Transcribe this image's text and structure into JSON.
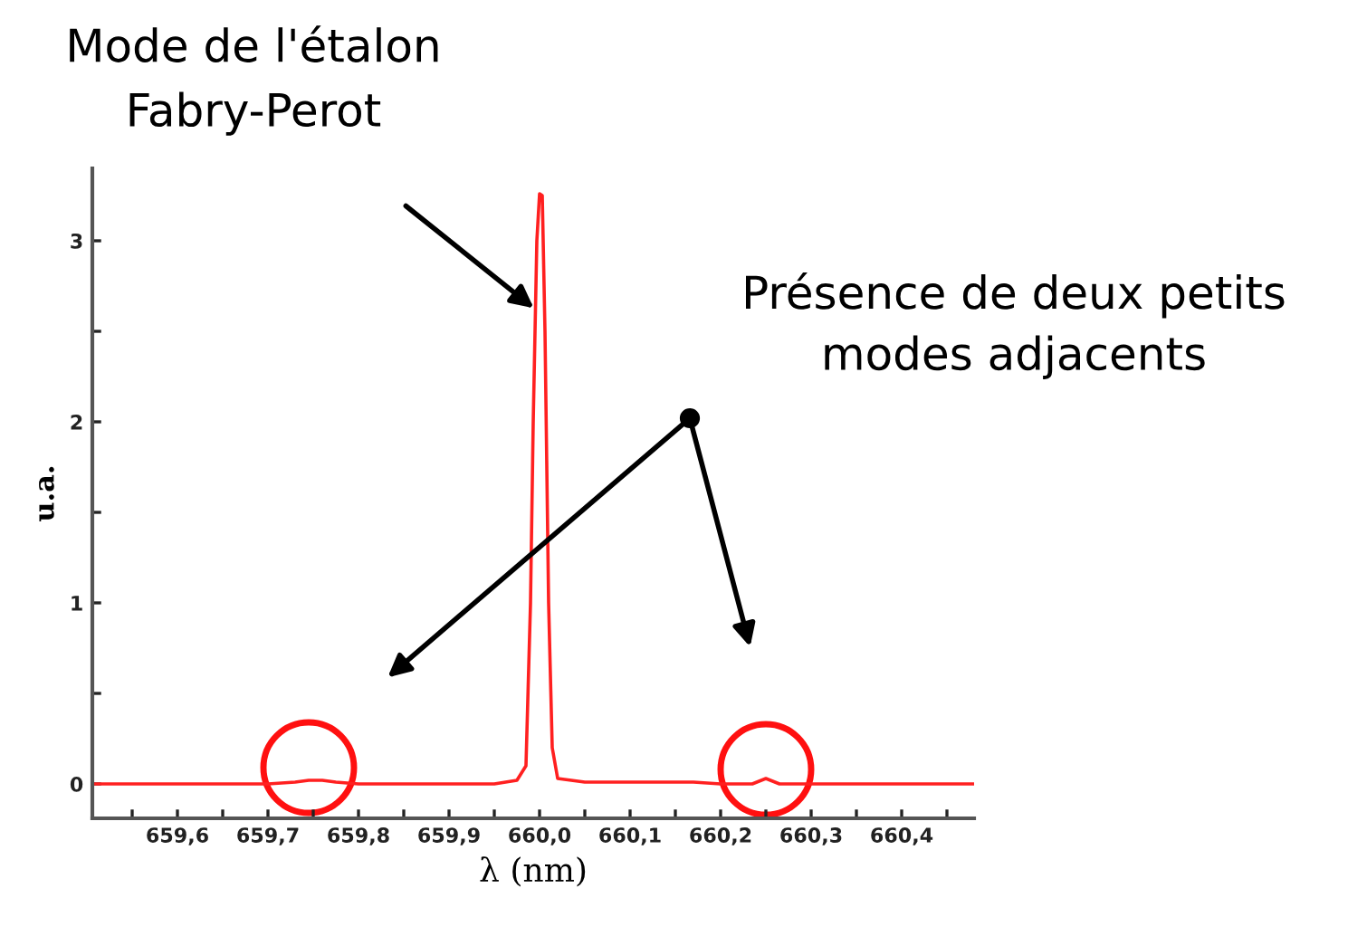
{
  "chart_data": {
    "type": "line",
    "xlabel": "λ (nm)",
    "ylabel": "u.a.",
    "x": [
      659.506,
      659.7,
      659.73,
      659.745,
      659.76,
      659.775,
      659.8,
      659.95,
      659.975,
      659.985,
      659.99,
      659.993,
      659.997,
      660.0,
      660.003,
      660.006,
      660.01,
      660.014,
      660.02,
      660.05,
      660.17,
      660.2,
      660.235,
      660.25,
      660.265,
      660.48
    ],
    "series": [
      {
        "color": "#ff2020",
        "values": [
          0,
          0,
          0.01,
          0.02,
          0.02,
          0.01,
          0,
          0,
          0.02,
          0.1,
          1.0,
          2.0,
          3.0,
          3.26,
          3.25,
          2.5,
          1.0,
          0.2,
          0.03,
          0.01,
          0.01,
          0,
          0,
          0.03,
          0,
          0
        ]
      }
    ],
    "xlim": [
      659.506,
      660.48
    ],
    "ylim": [
      -0.19,
      3.4
    ],
    "xticks": [
      {
        "value": 659.55,
        "label": null
      },
      {
        "value": 659.6,
        "label": "659,6"
      },
      {
        "value": 659.65,
        "label": null
      },
      {
        "value": 659.7,
        "label": "659,7"
      },
      {
        "value": 659.75,
        "label": null
      },
      {
        "value": 659.8,
        "label": "659,8"
      },
      {
        "value": 659.85,
        "label": null
      },
      {
        "value": 659.9,
        "label": "659,9"
      },
      {
        "value": 659.95,
        "label": null
      },
      {
        "value": 660.0,
        "label": "660,0"
      },
      {
        "value": 660.05,
        "label": null
      },
      {
        "value": 660.1,
        "label": "660,1"
      },
      {
        "value": 660.15,
        "label": null
      },
      {
        "value": 660.2,
        "label": "660,2"
      },
      {
        "value": 660.25,
        "label": null
      },
      {
        "value": 660.3,
        "label": "660,3"
      },
      {
        "value": 660.35,
        "label": null
      },
      {
        "value": 660.4,
        "label": "660,4"
      },
      {
        "value": 660.45,
        "label": null
      }
    ],
    "yticks": [
      0,
      {
        "value": 0.5,
        "label": null
      },
      1,
      {
        "value": 1.5,
        "label": null
      },
      2,
      {
        "value": 2.5,
        "label": null
      },
      3
    ],
    "grid": false,
    "legend": false,
    "marker": "none",
    "line_style": "solid",
    "annotations": [
      "Mode de l'étalon\nFabry-Perot",
      "Présence de deux petits\nmodes adjacents"
    ]
  }
}
